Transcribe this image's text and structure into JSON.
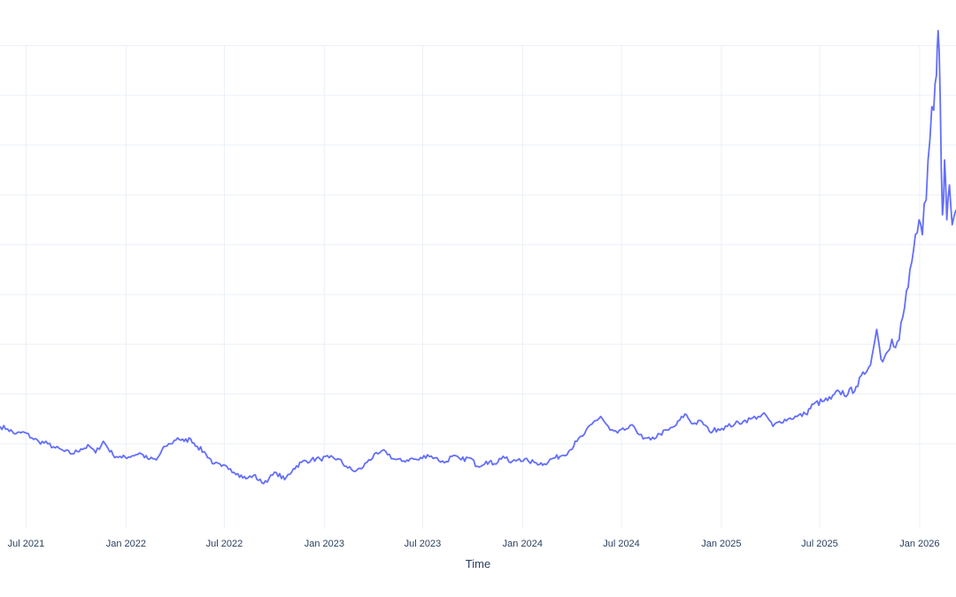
{
  "chart_data": {
    "type": "line",
    "title": "",
    "xlabel": "Time",
    "ylabel": "",
    "y_tick_labels_visible": false,
    "grid": true,
    "line_color": "#636efa",
    "grid_color": "#ebf0f8",
    "text_color": "#2a3f5f",
    "x_ticks": [
      {
        "date": "2021-07-01",
        "label": "Jul 2021"
      },
      {
        "date": "2022-01-01",
        "label": "Jan 2022"
      },
      {
        "date": "2022-07-01",
        "label": "Jul 2022"
      },
      {
        "date": "2023-01-01",
        "label": "Jan 2023"
      },
      {
        "date": "2023-07-01",
        "label": "Jul 2023"
      },
      {
        "date": "2024-01-01",
        "label": "Jan 2024"
      },
      {
        "date": "2024-07-01",
        "label": "Jul 2024"
      },
      {
        "date": "2025-01-01",
        "label": "Jan 2025"
      },
      {
        "date": "2025-07-01",
        "label": "Jul 2025"
      },
      {
        "date": "2026-01-01",
        "label": "Jan 2026"
      }
    ],
    "xlim": [
      "2021-05-14",
      "2026-03-09"
    ],
    "ylim": [
      0,
      10
    ],
    "y_grid_values": [
      0.5,
      1.5,
      2.5,
      3.5,
      4.5,
      5.5,
      6.5,
      7.5,
      8.5,
      9.5
    ],
    "series": [
      {
        "points": [
          [
            "2021-05-14",
            0.85
          ],
          [
            "2021-05-28",
            0.8
          ],
          [
            "2021-06-12",
            0.7
          ],
          [
            "2021-06-28",
            0.73
          ],
          [
            "2021-07-12",
            0.62
          ],
          [
            "2021-07-24",
            0.55
          ],
          [
            "2021-08-10",
            0.5
          ],
          [
            "2021-08-24",
            0.42
          ],
          [
            "2021-09-10",
            0.35
          ],
          [
            "2021-09-24",
            0.3
          ],
          [
            "2021-10-10",
            0.4
          ],
          [
            "2021-10-26",
            0.45
          ],
          [
            "2021-11-06",
            0.32
          ],
          [
            "2021-11-20",
            0.55
          ],
          [
            "2021-12-08",
            0.28
          ],
          [
            "2021-12-24",
            0.22
          ],
          [
            "2022-01-12",
            0.26
          ],
          [
            "2022-01-26",
            0.32
          ],
          [
            "2022-02-10",
            0.2
          ],
          [
            "2022-02-26",
            0.18
          ],
          [
            "2022-03-14",
            0.45
          ],
          [
            "2022-03-24",
            0.5
          ],
          [
            "2022-04-06",
            0.62
          ],
          [
            "2022-04-18",
            0.55
          ],
          [
            "2022-04-30",
            0.6
          ],
          [
            "2022-05-12",
            0.45
          ],
          [
            "2022-05-28",
            0.3
          ],
          [
            "2022-06-12",
            0.1
          ],
          [
            "2022-06-26",
            0.05
          ],
          [
            "2022-07-12",
            0.0
          ],
          [
            "2022-07-26",
            -0.1
          ],
          [
            "2022-08-10",
            -0.2
          ],
          [
            "2022-08-24",
            -0.13
          ],
          [
            "2022-09-08",
            -0.28
          ],
          [
            "2022-09-21",
            -0.2
          ],
          [
            "2022-10-05",
            -0.08
          ],
          [
            "2022-10-20",
            -0.22
          ],
          [
            "2022-11-05",
            0.0
          ],
          [
            "2022-11-20",
            0.13
          ],
          [
            "2022-12-08",
            0.18
          ],
          [
            "2022-12-24",
            0.2
          ],
          [
            "2023-01-10",
            0.22
          ],
          [
            "2023-01-26",
            0.2
          ],
          [
            "2023-02-10",
            0.05
          ],
          [
            "2023-02-24",
            -0.05
          ],
          [
            "2023-03-10",
            0.0
          ],
          [
            "2023-03-24",
            0.18
          ],
          [
            "2023-04-10",
            0.3
          ],
          [
            "2023-04-24",
            0.35
          ],
          [
            "2023-05-08",
            0.2
          ],
          [
            "2023-05-24",
            0.15
          ],
          [
            "2023-06-08",
            0.2
          ],
          [
            "2023-06-24",
            0.18
          ],
          [
            "2023-07-10",
            0.28
          ],
          [
            "2023-07-24",
            0.22
          ],
          [
            "2023-08-10",
            0.12
          ],
          [
            "2023-08-24",
            0.25
          ],
          [
            "2023-09-10",
            0.18
          ],
          [
            "2023-09-26",
            0.22
          ],
          [
            "2023-10-10",
            0.05
          ],
          [
            "2023-10-26",
            0.15
          ],
          [
            "2023-11-10",
            0.1
          ],
          [
            "2023-11-26",
            0.25
          ],
          [
            "2023-12-10",
            0.12
          ],
          [
            "2023-12-26",
            0.2
          ],
          [
            "2024-01-12",
            0.15
          ],
          [
            "2024-01-26",
            0.12
          ],
          [
            "2024-02-10",
            0.1
          ],
          [
            "2024-02-24",
            0.2
          ],
          [
            "2024-03-10",
            0.25
          ],
          [
            "2024-03-26",
            0.35
          ],
          [
            "2024-04-10",
            0.55
          ],
          [
            "2024-04-24",
            0.7
          ],
          [
            "2024-05-08",
            0.9
          ],
          [
            "2024-05-24",
            1.05
          ],
          [
            "2024-06-10",
            0.78
          ],
          [
            "2024-06-24",
            0.72
          ],
          [
            "2024-07-10",
            0.8
          ],
          [
            "2024-07-24",
            0.85
          ],
          [
            "2024-08-10",
            0.6
          ],
          [
            "2024-08-24",
            0.58
          ],
          [
            "2024-09-10",
            0.7
          ],
          [
            "2024-09-26",
            0.78
          ],
          [
            "2024-10-10",
            0.88
          ],
          [
            "2024-10-26",
            1.1
          ],
          [
            "2024-11-10",
            0.9
          ],
          [
            "2024-11-26",
            0.95
          ],
          [
            "2024-12-10",
            0.75
          ],
          [
            "2024-12-26",
            0.8
          ],
          [
            "2025-01-12",
            0.85
          ],
          [
            "2025-01-26",
            0.9
          ],
          [
            "2025-02-10",
            0.95
          ],
          [
            "2025-02-24",
            1.0
          ],
          [
            "2025-03-10",
            1.05
          ],
          [
            "2025-03-24",
            1.08
          ],
          [
            "2025-04-06",
            0.85
          ],
          [
            "2025-04-18",
            0.95
          ],
          [
            "2025-05-04",
            1.0
          ],
          [
            "2025-05-20",
            1.05
          ],
          [
            "2025-06-05",
            1.1
          ],
          [
            "2025-06-20",
            1.3
          ],
          [
            "2025-07-06",
            1.35
          ],
          [
            "2025-07-22",
            1.4
          ],
          [
            "2025-08-06",
            1.55
          ],
          [
            "2025-08-22",
            1.5
          ],
          [
            "2025-09-06",
            1.65
          ],
          [
            "2025-09-22",
            1.9
          ],
          [
            "2025-10-06",
            2.3
          ],
          [
            "2025-10-14",
            2.8
          ],
          [
            "2025-10-22",
            2.2
          ],
          [
            "2025-11-03",
            2.35
          ],
          [
            "2025-11-11",
            2.6
          ],
          [
            "2025-11-21",
            2.55
          ],
          [
            "2025-12-01",
            3.05
          ],
          [
            "2025-12-11",
            3.65
          ],
          [
            "2025-12-21",
            4.4
          ],
          [
            "2025-12-31",
            5.0
          ],
          [
            "2026-01-06",
            4.7
          ],
          [
            "2026-01-13",
            5.4
          ],
          [
            "2026-01-20",
            6.6
          ],
          [
            "2026-01-27",
            7.2
          ],
          [
            "2026-02-01",
            7.9
          ],
          [
            "2026-02-04",
            8.8
          ],
          [
            "2026-02-08",
            7.4
          ],
          [
            "2026-02-12",
            5.1
          ],
          [
            "2026-02-16",
            6.2
          ],
          [
            "2026-02-20",
            5.0
          ],
          [
            "2026-02-25",
            5.7
          ],
          [
            "2026-03-02",
            4.9
          ],
          [
            "2026-03-09",
            5.2
          ]
        ]
      }
    ]
  }
}
